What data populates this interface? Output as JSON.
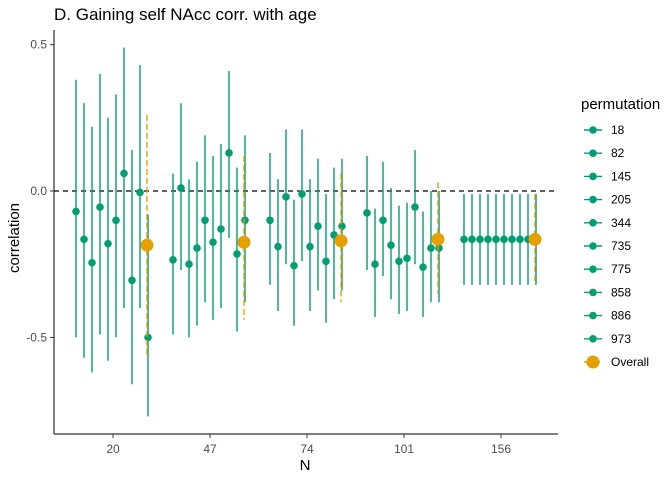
{
  "chart_data": {
    "type": "scatter",
    "title": "D. Gaining self NAcc corr. with age",
    "xlabel": "N",
    "ylabel": "correlation",
    "x_categories": [
      "20",
      "47",
      "74",
      "101",
      "156"
    ],
    "yticks": [
      0.5,
      0.0,
      -0.5
    ],
    "ytick_labels": [
      "0.5",
      "0.0",
      "-0.5"
    ],
    "ylim": [
      -0.83,
      0.55
    ],
    "reference_line": 0.0,
    "grid": false,
    "legend_title": "permutation",
    "legend_position": "right",
    "permutation_labels": [
      "18",
      "82",
      "145",
      "205",
      "344",
      "735",
      "775",
      "858",
      "886",
      "973"
    ],
    "overall_label": "Overall",
    "colors": {
      "permutation": "#009E73",
      "overall": "#E69F00",
      "reference": "#000000"
    },
    "groups": [
      {
        "n": "20",
        "permutations": [
          {
            "estimate": -0.07,
            "lower": -0.5,
            "upper": 0.38
          },
          {
            "estimate": -0.165,
            "lower": -0.57,
            "upper": 0.3
          },
          {
            "estimate": -0.245,
            "lower": -0.62,
            "upper": 0.22
          },
          {
            "estimate": -0.055,
            "lower": -0.49,
            "upper": 0.4
          },
          {
            "estimate": -0.18,
            "lower": -0.58,
            "upper": 0.25
          },
          {
            "estimate": -0.1,
            "lower": -0.5,
            "upper": 0.33
          },
          {
            "estimate": 0.06,
            "lower": -0.4,
            "upper": 0.49
          },
          {
            "estimate": -0.305,
            "lower": -0.66,
            "upper": 0.14
          },
          {
            "estimate": -0.005,
            "lower": -0.4,
            "upper": 0.43
          },
          {
            "estimate": -0.5,
            "lower": -0.77,
            "upper": -0.08
          }
        ],
        "overall": {
          "estimate": -0.185,
          "lower": -0.56,
          "upper": 0.26
        }
      },
      {
        "n": "47",
        "permutations": [
          {
            "estimate": -0.235,
            "lower": -0.49,
            "upper": 0.06
          },
          {
            "estimate": 0.01,
            "lower": -0.27,
            "upper": 0.3
          },
          {
            "estimate": -0.25,
            "lower": -0.5,
            "upper": 0.04
          },
          {
            "estimate": -0.195,
            "lower": -0.46,
            "upper": 0.1
          },
          {
            "estimate": -0.1,
            "lower": -0.38,
            "upper": 0.19
          },
          {
            "estimate": -0.175,
            "lower": -0.44,
            "upper": 0.12
          },
          {
            "estimate": -0.13,
            "lower": -0.4,
            "upper": 0.16
          },
          {
            "estimate": 0.13,
            "lower": -0.16,
            "upper": 0.41
          },
          {
            "estimate": -0.215,
            "lower": -0.48,
            "upper": 0.08
          },
          {
            "estimate": -0.1,
            "lower": -0.38,
            "upper": 0.19
          }
        ],
        "overall": {
          "estimate": -0.175,
          "lower": -0.44,
          "upper": 0.12
        }
      },
      {
        "n": "74",
        "permutations": [
          {
            "estimate": -0.1,
            "lower": -0.32,
            "upper": 0.13
          },
          {
            "estimate": -0.19,
            "lower": -0.41,
            "upper": 0.04
          },
          {
            "estimate": -0.02,
            "lower": -0.25,
            "upper": 0.21
          },
          {
            "estimate": -0.255,
            "lower": -0.46,
            "upper": -0.03
          },
          {
            "estimate": -0.01,
            "lower": -0.24,
            "upper": 0.21
          },
          {
            "estimate": -0.19,
            "lower": -0.41,
            "upper": 0.04
          },
          {
            "estimate": -0.12,
            "lower": -0.34,
            "upper": 0.11
          },
          {
            "estimate": -0.24,
            "lower": -0.45,
            "upper": -0.01
          },
          {
            "estimate": -0.15,
            "lower": -0.37,
            "upper": 0.08
          },
          {
            "estimate": -0.12,
            "lower": -0.34,
            "upper": 0.11
          }
        ],
        "overall": {
          "estimate": -0.17,
          "lower": -0.38,
          "upper": 0.06
        }
      },
      {
        "n": "101",
        "permutations": [
          {
            "estimate": -0.075,
            "lower": -0.27,
            "upper": 0.12
          },
          {
            "estimate": -0.25,
            "lower": -0.43,
            "upper": -0.06
          },
          {
            "estimate": -0.1,
            "lower": -0.29,
            "upper": 0.1
          },
          {
            "estimate": -0.185,
            "lower": -0.37,
            "upper": 0.01
          },
          {
            "estimate": -0.24,
            "lower": -0.42,
            "upper": -0.05
          },
          {
            "estimate": -0.23,
            "lower": -0.41,
            "upper": -0.04
          },
          {
            "estimate": -0.055,
            "lower": -0.25,
            "upper": 0.14
          },
          {
            "estimate": -0.26,
            "lower": -0.43,
            "upper": -0.07
          },
          {
            "estimate": -0.195,
            "lower": -0.38,
            "upper": 0.0
          },
          {
            "estimate": -0.195,
            "lower": -0.38,
            "upper": 0.0
          }
        ],
        "overall": {
          "estimate": -0.165,
          "lower": -0.35,
          "upper": 0.03
        }
      },
      {
        "n": "156",
        "permutations": [
          {
            "estimate": -0.165,
            "lower": -0.32,
            "upper": -0.01
          },
          {
            "estimate": -0.165,
            "lower": -0.32,
            "upper": -0.01
          },
          {
            "estimate": -0.165,
            "lower": -0.32,
            "upper": -0.01
          },
          {
            "estimate": -0.165,
            "lower": -0.32,
            "upper": -0.01
          },
          {
            "estimate": -0.165,
            "lower": -0.32,
            "upper": -0.01
          },
          {
            "estimate": -0.165,
            "lower": -0.32,
            "upper": -0.01
          },
          {
            "estimate": -0.165,
            "lower": -0.32,
            "upper": -0.01
          },
          {
            "estimate": -0.165,
            "lower": -0.32,
            "upper": -0.01
          },
          {
            "estimate": -0.165,
            "lower": -0.32,
            "upper": -0.01
          },
          {
            "estimate": -0.165,
            "lower": -0.32,
            "upper": -0.01
          }
        ],
        "overall": {
          "estimate": -0.165,
          "lower": -0.32,
          "upper": -0.01
        }
      }
    ]
  }
}
